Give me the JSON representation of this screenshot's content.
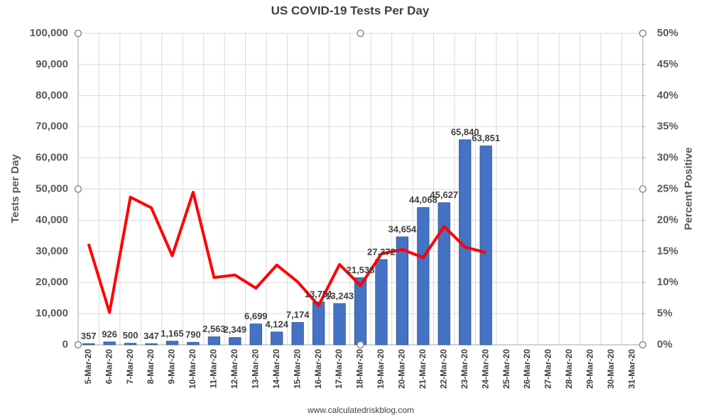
{
  "chart_data": {
    "type": "bar",
    "title": "US COVID-19 Tests Per Day",
    "ylabel": "Tests per Day",
    "y2label": "Percent Positive",
    "source": "www.calculatedriskblog.com",
    "categories": [
      "5-Mar-20",
      "6-Mar-20",
      "7-Mar-20",
      "8-Mar-20",
      "9-Mar-20",
      "10-Mar-20",
      "11-Mar-20",
      "12-Mar-20",
      "13-Mar-20",
      "14-Mar-20",
      "15-Mar-20",
      "16-Mar-20",
      "17-Mar-20",
      "18-Mar-20",
      "19-Mar-20",
      "20-Mar-20",
      "21-Mar-20",
      "22-Mar-20",
      "23-Mar-20",
      "24-Mar-20",
      "25-Mar-20",
      "26-Mar-20",
      "27-Mar-20",
      "28-Mar-20",
      "29-Mar-20",
      "30-Mar-20",
      "31-Mar-20"
    ],
    "series": [
      {
        "type": "bar",
        "color": "#4472c4",
        "values": [
          357,
          926,
          500,
          347,
          1165,
          790,
          2563,
          2349,
          6699,
          4124,
          7174,
          13751,
          13243,
          21538,
          27372,
          34654,
          44068,
          45627,
          65840,
          63851,
          null,
          null,
          null,
          null,
          null,
          null,
          null
        ],
        "value_labels": [
          "357",
          "926",
          "500",
          "347",
          "1,165",
          "790",
          "2,563",
          "2,349",
          "6,699",
          "4,124",
          "7,174",
          "13,751",
          "13,243",
          "21,538",
          "27,372",
          "34,654",
          "44,068",
          "45,627",
          "65,840",
          "63,851",
          null,
          null,
          null,
          null,
          null,
          null,
          null
        ]
      },
      {
        "type": "line",
        "axis": "y2",
        "color": "#ff0000",
        "values": [
          16.2,
          5.2,
          23.7,
          22.0,
          14.3,
          24.5,
          10.8,
          11.2,
          9.1,
          12.8,
          10.1,
          6.3,
          12.9,
          9.5,
          14.6,
          15.3,
          14.0,
          19.0,
          15.7,
          14.8,
          null,
          null,
          null,
          null,
          null,
          null,
          null
        ]
      }
    ],
    "ylim": [
      0,
      100000
    ],
    "yticks": [
      0,
      {
        "value": 10000,
        "label": "10,000"
      },
      {
        "value": 20000,
        "label": "20,000"
      },
      {
        "value": 30000,
        "label": "30,000"
      },
      {
        "value": 40000,
        "label": "40,000"
      },
      {
        "value": 50000,
        "label": "50,000"
      },
      {
        "value": 60000,
        "label": "60,000"
      },
      {
        "value": 70000,
        "label": "70,000"
      },
      {
        "value": 80000,
        "label": "80,000"
      },
      {
        "value": 90000,
        "label": "90,000"
      },
      {
        "value": 100000,
        "label": "100,000"
      }
    ],
    "y2lim": [
      0,
      50
    ],
    "y2ticks": [
      {
        "value": 0,
        "label": "0%"
      },
      {
        "value": 5,
        "label": "5%"
      },
      {
        "value": 10,
        "label": "10%"
      },
      {
        "value": 15,
        "label": "15%"
      },
      {
        "value": 20,
        "label": "20%"
      },
      {
        "value": 25,
        "label": "25%"
      },
      {
        "value": 30,
        "label": "30%"
      },
      {
        "value": 35,
        "label": "35%"
      },
      {
        "value": 40,
        "label": "40%"
      },
      {
        "value": 45,
        "label": "45%"
      },
      {
        "value": 50,
        "label": "50%"
      }
    ],
    "grid": true
  }
}
